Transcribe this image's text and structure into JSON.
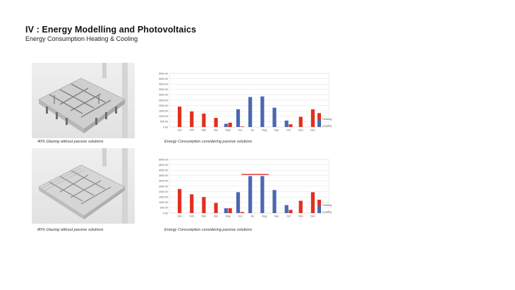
{
  "header": {
    "title": "IV :  Energy Modelling and Photovoltaics",
    "subtitle": "Energy Consumption Heating & Cooling"
  },
  "panels": [
    {
      "render_caption": "40% Glazing without passive solutions",
      "chart_caption": "Energy Consumption considering passive solutions"
    },
    {
      "render_caption": "80% Glazing without passive solutions",
      "chart_caption": "Energy Consumption considering passive solutions"
    }
  ],
  "colors": {
    "heating": "#e0301e",
    "cooling": "#4a68b0",
    "highlight": "#e0201a"
  },
  "chart_data": [
    {
      "type": "bar",
      "categories": [
        "Jan",
        "Feb",
        "Mar",
        "Apr",
        "May",
        "Jun",
        "Jul",
        "Aug",
        "Sep",
        "Oct",
        "Nov",
        "Dec"
      ],
      "y_ticks": [
        "0.00",
        "500.00",
        "1000.00",
        "1500.00",
        "2000.00",
        "2500.00",
        "3000.00",
        "3500.00",
        "4000.00",
        "4500.00",
        "5000.00"
      ],
      "ylim": [
        0,
        5000
      ],
      "grid": true,
      "legend_position": "right",
      "series": [
        {
          "name": "Heating",
          "values": [
            1900,
            1450,
            1250,
            850,
            400,
            50,
            0,
            0,
            0,
            250,
            950,
            1650
          ]
        },
        {
          "name": "Cooling",
          "values": [
            0,
            0,
            0,
            0,
            300,
            1650,
            2800,
            2850,
            1800,
            600,
            0,
            0
          ]
        }
      ],
      "legend_key": {
        "heating_value": 1300,
        "cooling_value": 650
      }
    },
    {
      "type": "bar",
      "categories": [
        "Jan",
        "Feb",
        "Mar",
        "Apr",
        "May",
        "Jun",
        "Jul",
        "Aug",
        "Sep",
        "Oct",
        "Nov",
        "Dec"
      ],
      "y_ticks": [
        "0.00",
        "500.00",
        "1000.00",
        "1500.00",
        "2000.00",
        "2500.00",
        "3000.00",
        "3500.00",
        "4000.00",
        "4500.00",
        "5000.00"
      ],
      "ylim": [
        0,
        5000
      ],
      "grid": true,
      "legend_position": "right",
      "series": [
        {
          "name": "Heating",
          "values": [
            2250,
            1750,
            1500,
            950,
            450,
            100,
            0,
            0,
            0,
            300,
            1150,
            1950
          ]
        },
        {
          "name": "Cooling",
          "values": [
            0,
            0,
            0,
            0,
            450,
            1950,
            3450,
            3450,
            2150,
            750,
            0,
            0
          ]
        }
      ],
      "legend_key": {
        "heating_value": 1250,
        "cooling_value": 650
      },
      "highlight_line_value": 3600
    }
  ]
}
